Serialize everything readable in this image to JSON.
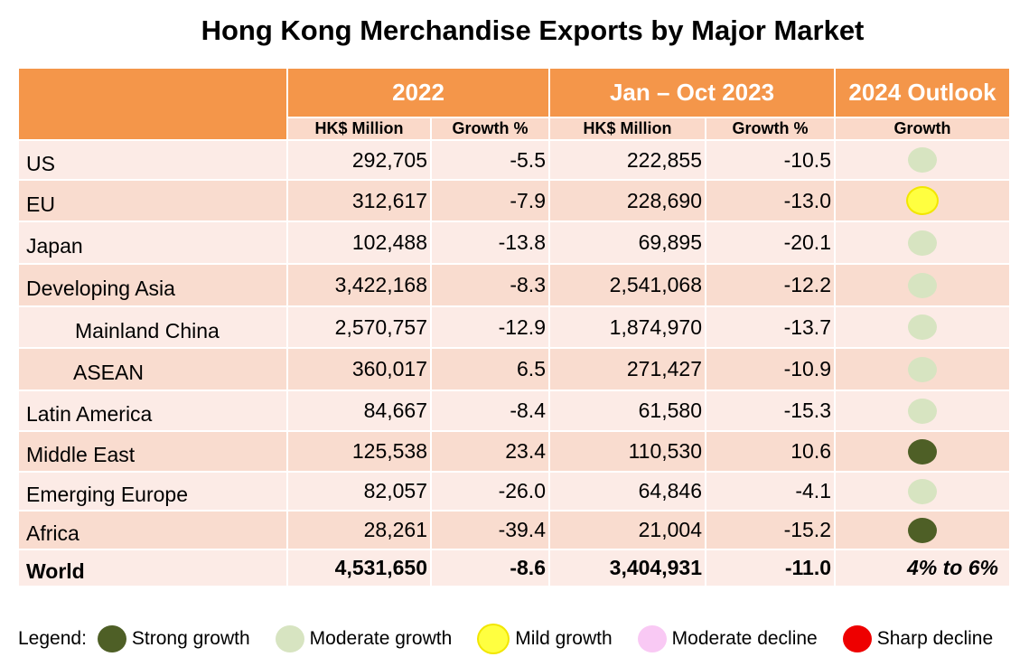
{
  "title": "Hong Kong Merchandise Exports by Major Market",
  "headers": {
    "period1": "2022",
    "period2": "Jan – Oct 2023",
    "period3": "2024 Outlook",
    "sub": [
      "HK$ Million",
      "Growth %",
      "HK$ Million",
      "Growth %",
      "Growth"
    ]
  },
  "rows": [
    {
      "market": "US",
      "v2022": "292,705",
      "g2022": "-5.5",
      "v2023": "222,855",
      "g2023": "-10.5",
      "outlook": "moderate"
    },
    {
      "market": "EU",
      "v2022": "312,617",
      "g2022": "-7.9",
      "v2023": "228,690",
      "g2023": "-13.0",
      "outlook": "mild"
    },
    {
      "market": "Japan",
      "v2022": "102,488",
      "g2022": "-13.8",
      "v2023": "69,895",
      "g2023": "-20.1",
      "outlook": "moderate"
    },
    {
      "market": "Developing Asia",
      "v2022": "3,422,168",
      "g2022": "-8.3",
      "v2023": "2,541,068",
      "g2023": "-12.2",
      "outlook": "moderate"
    },
    {
      "market": "Mainland China",
      "v2022": "2,570,757",
      "g2022": "-12.9",
      "v2023": "1,874,970",
      "g2023": "-13.7",
      "outlook": "moderate"
    },
    {
      "market": "ASEAN",
      "v2022": "360,017",
      "g2022": "6.5",
      "v2023": "271,427",
      "g2023": "-10.9",
      "outlook": "moderate"
    },
    {
      "market": "Latin America",
      "v2022": "84,667",
      "g2022": "-8.4",
      "v2023": "61,580",
      "g2023": "-15.3",
      "outlook": "moderate"
    },
    {
      "market": "Middle East",
      "v2022": "125,538",
      "g2022": "23.4",
      "v2023": "110,530",
      "g2023": "10.6",
      "outlook": "strong"
    },
    {
      "market": "Emerging Europe",
      "v2022": "82,057",
      "g2022": "-26.0",
      "v2023": "64,846",
      "g2023": "-4.1",
      "outlook": "moderate"
    },
    {
      "market": "Africa",
      "v2022": "28,261",
      "g2022": "-39.4",
      "v2023": "21,004",
      "g2023": "-15.2",
      "outlook": "strong"
    }
  ],
  "world": {
    "market": "World",
    "v2022": "4,531,650",
    "g2022": "-8.6",
    "v2023": "3,404,931",
    "g2023": "-11.0",
    "outlook": "4% to 6%"
  },
  "legend": {
    "label": "Legend:",
    "items": [
      {
        "key": "strong",
        "label": "Strong growth",
        "color": "#4e5f26"
      },
      {
        "key": "moderate",
        "label": "Moderate growth",
        "color": "#d7e4c1"
      },
      {
        "key": "mild",
        "label": "Mild growth",
        "color": "#ffff40"
      },
      {
        "key": "moddecline",
        "label": "Moderate decline",
        "color": "#f9c9f4"
      },
      {
        "key": "sharp",
        "label": "Sharp decline",
        "color": "#ee0000"
      }
    ]
  }
}
